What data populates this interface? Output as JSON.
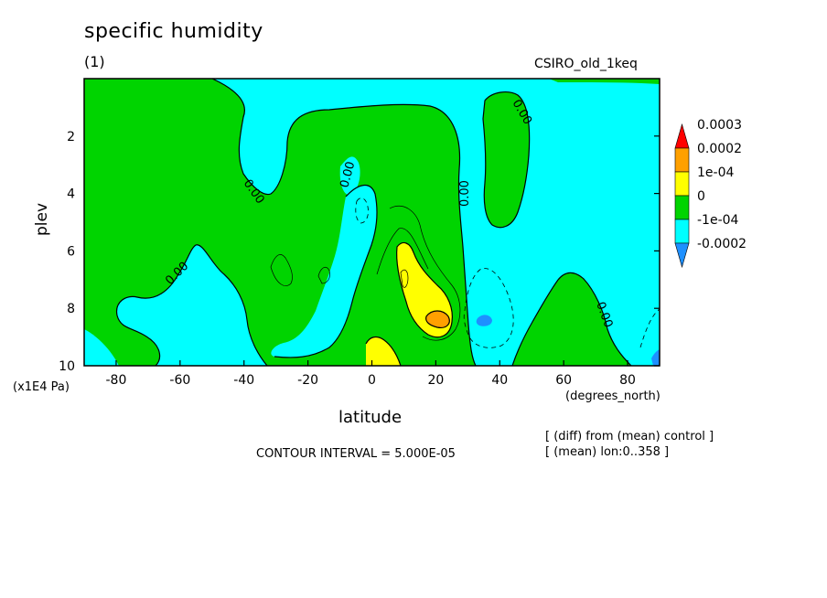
{
  "title": "specific humidity",
  "subtitle": "(1)",
  "model_label": "CSIRO_old_1keq",
  "contour_interval": "CONTOUR INTERVAL = 5.000E-05",
  "notes": [
    "[ (diff) from (mean) control ]",
    "[ (mean) lon:0..358 ]"
  ],
  "colors": {
    "neg2": "#1e90ff",
    "neg1": "#00ffff",
    "zero": "#00d400",
    "pos1": "#ffff00",
    "pos2": "#ffa000",
    "pos3": "#ff0000"
  },
  "chart_data": {
    "type": "heatmap",
    "title": "specific humidity",
    "xlabel": "latitude",
    "ylabel": "plev",
    "x_units": "(degrees_north)",
    "y_units": "(x1E4 Pa)",
    "xlim": [
      -90,
      90
    ],
    "ylim": [
      10,
      0
    ],
    "x_ticks": [
      "-80",
      "-60",
      "-40",
      "-20",
      "0",
      "20",
      "40",
      "60",
      "80"
    ],
    "y_ticks": [
      "2",
      "4",
      "6",
      "8",
      "10"
    ],
    "contour_interval": 5e-05,
    "contour_labels": [
      "0.00",
      "0.00",
      "0.00",
      "0.00",
      "0.00",
      "0.00"
    ],
    "colorbar": {
      "labels": [
        "0.0003",
        "0.0002",
        "1e-04",
        "0",
        "-1e-04",
        "-0.0002"
      ],
      "colors": [
        "#ff0000",
        "#ffa000",
        "#ffff00",
        "#00d400",
        "#00ffff",
        "#1e90ff"
      ]
    }
  }
}
